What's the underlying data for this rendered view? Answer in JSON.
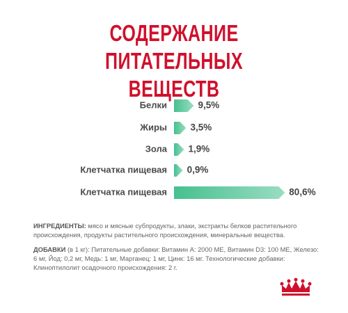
{
  "chart_data": {
    "type": "bar",
    "orientation": "horizontal",
    "title": "СОДЕРЖАНИЕ ПИТАТЕЛЬНЫХ ВЕЩЕСТВ",
    "categories": [
      "Белки",
      "Жиры",
      "Зола",
      "Клетчатка пищевая",
      "Клетчатка пищевая"
    ],
    "values": [
      9.5,
      3.5,
      1.9,
      0.9,
      80.6
    ],
    "value_labels": [
      "9,5%",
      "3,5%",
      "1,9%",
      "0,9%",
      "80,6%"
    ],
    "color": "#46c08f"
  },
  "ingredients": {
    "label": "ИНГРЕДИЕНТЫ:",
    "text": "мясо и мясные субпродукты, злаки, экстракты белков растительного происхождения, продукты растительного происхождения, минеральные вещества."
  },
  "additives": {
    "label": "ДОБАВКИ",
    "text": "(в 1 кг): Питательные добавки: Витамин A: 2000 МЕ, Витамин D3: 100 МЕ, Железо: 6 мг, Йод: 0,2 мг, Медь: 1 мг, Марганец: 1 мг, Цинк: 16 мг. Технологические добавки: Клиноптилолит осадочного происхождения: 2 г."
  }
}
